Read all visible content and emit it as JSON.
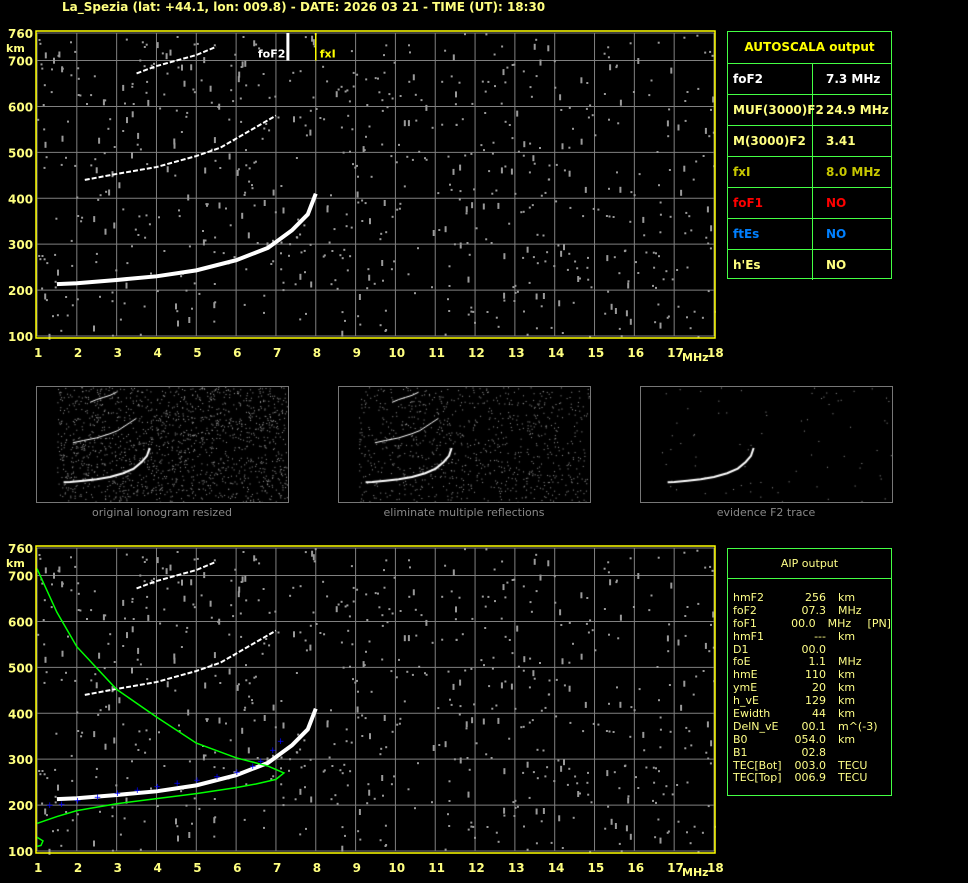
{
  "title": "La_Spezia (lat: +44.1, lon: 009.8) - DATE: 2026 03 21 - TIME (UT): 18:30",
  "colors": {
    "frame": "#ffff00",
    "grid": "#808080",
    "trace": "#ffffff",
    "noise": "#9a9a9a",
    "profile": "#00ff00",
    "aip_points": "#0000ff",
    "table_border": "#40ff40"
  },
  "chart_data": [
    {
      "type": "scatter",
      "name_of_panel": "autoscala-ionogram",
      "xlabel": "MHz",
      "ylabel": "km",
      "xlim": [
        1,
        18
      ],
      "ylim": [
        100,
        760
      ],
      "x_ticks": [
        "1",
        "2",
        "3",
        "4",
        "5",
        "6",
        "7",
        "8",
        "9",
        "10",
        "11",
        "12",
        "13",
        "14",
        "15",
        "16",
        "17",
        "18"
      ],
      "y_ticks": [
        "760",
        "700",
        "600",
        "500",
        "400",
        "300",
        "200",
        "100"
      ],
      "grid": true,
      "markers": [
        {
          "label": "foF2",
          "x": 7.3,
          "color": "#ffffff"
        },
        {
          "label": "fxI",
          "x": 8.0,
          "color": "#ffff00"
        }
      ],
      "traces": [
        {
          "points": [
            [
              1.5,
              213
            ],
            [
              2,
              215
            ],
            [
              3,
              222
            ],
            [
              4,
              230
            ],
            [
              5,
              243
            ],
            [
              6,
              265
            ],
            [
              6.8,
              292
            ],
            [
              7.4,
              330
            ],
            [
              7.8,
              365
            ],
            [
              8.0,
              410
            ]
          ]
        },
        {
          "points": [
            [
              2.2,
              440
            ],
            [
              3,
              453
            ],
            [
              4,
              468
            ],
            [
              5,
              492
            ],
            [
              5.6,
              510
            ],
            [
              6,
              530
            ],
            [
              6.5,
              555
            ],
            [
              7,
              580
            ]
          ]
        },
        {
          "points": [
            [
              3.5,
              672
            ],
            [
              4,
              688
            ],
            [
              4.5,
              700
            ],
            [
              5,
              712
            ],
            [
              5.5,
              730
            ]
          ]
        }
      ]
    },
    {
      "type": "scatter",
      "name_of_panel": "aip-ionogram",
      "xlabel": "MHz",
      "ylabel": "km",
      "xlim": [
        1,
        18
      ],
      "ylim": [
        100,
        760
      ],
      "x_ticks": [
        "1",
        "2",
        "3",
        "4",
        "5",
        "6",
        "7",
        "8",
        "9",
        "10",
        "11",
        "12",
        "13",
        "14",
        "15",
        "16",
        "17",
        "18"
      ],
      "y_ticks": [
        "760",
        "700",
        "600",
        "500",
        "400",
        "300",
        "200",
        "100"
      ],
      "grid": true,
      "traces": [
        {
          "points": [
            [
              1.5,
              213
            ],
            [
              2,
              215
            ],
            [
              3,
              222
            ],
            [
              4,
              230
            ],
            [
              5,
              243
            ],
            [
              6,
              265
            ],
            [
              6.8,
              292
            ],
            [
              7.4,
              330
            ],
            [
              7.8,
              365
            ],
            [
              8.0,
              410
            ]
          ]
        },
        {
          "points": [
            [
              2.2,
              440
            ],
            [
              3,
              453
            ],
            [
              4,
              468
            ],
            [
              5,
              492
            ],
            [
              5.6,
              510
            ],
            [
              6,
              530
            ],
            [
              6.5,
              555
            ],
            [
              7,
              580
            ]
          ]
        },
        {
          "points": [
            [
              3.5,
              672
            ],
            [
              4,
              688
            ],
            [
              4.5,
              700
            ],
            [
              5,
              712
            ],
            [
              5.5,
              730
            ]
          ]
        }
      ],
      "profile": [
        [
          1,
          715
        ],
        [
          1.5,
          620
        ],
        [
          2,
          545
        ],
        [
          3,
          452
        ],
        [
          4,
          392
        ],
        [
          5,
          335
        ],
        [
          6,
          303
        ],
        [
          6.8,
          285
        ],
        [
          7.2,
          270
        ],
        [
          7.0,
          256
        ],
        [
          6.5,
          246
        ],
        [
          6,
          238
        ],
        [
          5,
          225
        ],
        [
          4,
          214
        ],
        [
          3,
          203
        ],
        [
          2,
          188
        ],
        [
          1.5,
          175
        ],
        [
          1,
          160
        ]
      ],
      "profile_e": [
        [
          1,
          130
        ],
        [
          1.15,
          122
        ],
        [
          1.1,
          112
        ],
        [
          1,
          110
        ]
      ],
      "aip_points": [
        [
          1.3,
          200
        ],
        [
          1.6,
          202
        ],
        [
          2,
          210
        ],
        [
          2.5,
          218
        ],
        [
          3,
          226
        ],
        [
          3.5,
          233
        ],
        [
          4,
          240
        ],
        [
          4.5,
          248
        ],
        [
          5,
          255
        ],
        [
          5.5,
          262
        ],
        [
          6,
          272
        ],
        [
          6.4,
          285
        ],
        [
          6.6,
          296
        ],
        [
          6.9,
          320
        ],
        [
          7.1,
          340
        ]
      ]
    }
  ],
  "thumbnails": [
    {
      "caption": "original ionogram resized"
    },
    {
      "caption": "eliminate multiple reflections"
    },
    {
      "caption": "evidence F2 trace"
    }
  ],
  "autoscala": {
    "title": "AUTOSCALA output",
    "rows": [
      {
        "key": "foF2",
        "value": "7.3 MHz",
        "color": "#ffffff"
      },
      {
        "key": "MUF(3000)F2",
        "value": "24.9 MHz",
        "color": "#ffff80"
      },
      {
        "key": "M(3000)F2",
        "value": "3.41",
        "color": "#ffff80"
      },
      {
        "key": "fxI",
        "value": "8.0 MHz",
        "color": "#c8c800"
      },
      {
        "key": "foF1",
        "value": "NO",
        "color": "#ff0000"
      },
      {
        "key": "ftEs",
        "value": "NO",
        "color": "#0080ff"
      },
      {
        "key": "h'Es",
        "value": "NO",
        "color": "#ffff80"
      }
    ]
  },
  "aip": {
    "title": "AIP output",
    "rows": [
      {
        "key": "hmF2",
        "value": "256",
        "unit": "km",
        "extra": ""
      },
      {
        "key": "foF2",
        "value": "07.3",
        "unit": "MHz",
        "extra": ""
      },
      {
        "key": "foF1",
        "value": "00.0",
        "unit": "MHz",
        "extra": "[PN]"
      },
      {
        "key": "hmF1",
        "value": "---",
        "unit": "km",
        "extra": ""
      },
      {
        "key": "D1",
        "value": "00.0",
        "unit": "",
        "extra": ""
      },
      {
        "key": "foE",
        "value": "1.1",
        "unit": "MHz",
        "extra": ""
      },
      {
        "key": "hmE",
        "value": "110",
        "unit": "km",
        "extra": ""
      },
      {
        "key": "ymE",
        "value": "20",
        "unit": "km",
        "extra": ""
      },
      {
        "key": "h_vE",
        "value": "129",
        "unit": "km",
        "extra": ""
      },
      {
        "key": "Ewidth",
        "value": "44",
        "unit": "km",
        "extra": ""
      },
      {
        "key": "DelN_vE",
        "value": "00.1",
        "unit": "m^(-3)",
        "extra": ""
      },
      {
        "key": "B0",
        "value": "054.0",
        "unit": "km",
        "extra": ""
      },
      {
        "key": "B1",
        "value": "02.8",
        "unit": "",
        "extra": ""
      },
      {
        "key": "TEC[Bot]",
        "value": "003.0",
        "unit": "TECU",
        "extra": ""
      },
      {
        "key": "TEC[Top]",
        "value": "006.9",
        "unit": "TECU",
        "extra": ""
      }
    ]
  }
}
